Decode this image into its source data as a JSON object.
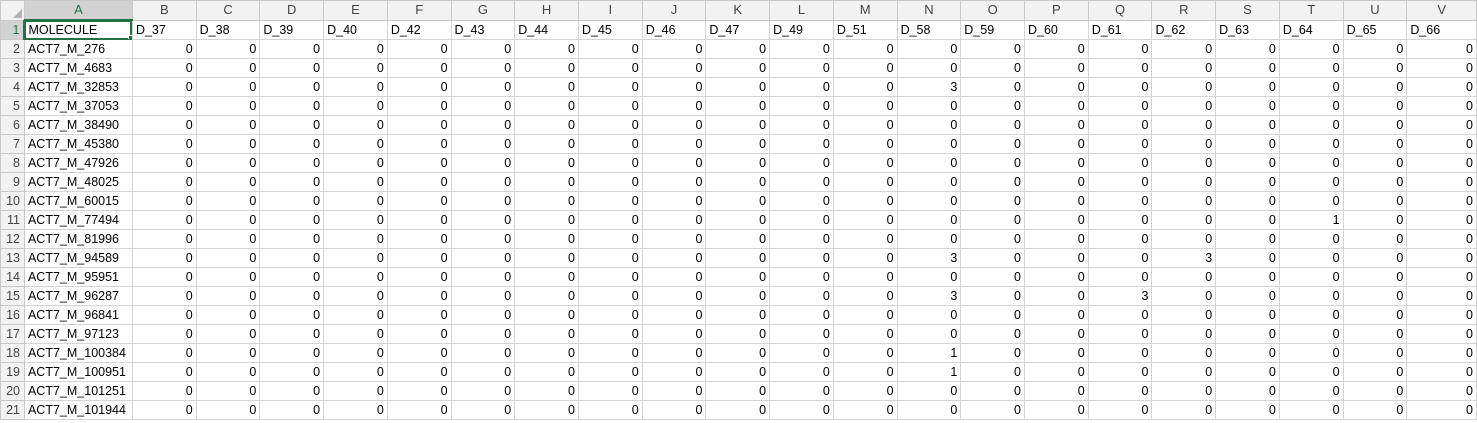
{
  "spreadsheet": {
    "column_letters": [
      "A",
      "B",
      "C",
      "D",
      "E",
      "F",
      "G",
      "H",
      "I",
      "J",
      "K",
      "L",
      "M",
      "N",
      "O",
      "P",
      "Q",
      "R",
      "S",
      "T",
      "U",
      "V"
    ],
    "row_numbers": [
      "1",
      "2",
      "3",
      "4",
      "5",
      "6",
      "7",
      "8",
      "9",
      "10",
      "11",
      "12",
      "13",
      "14",
      "15",
      "16",
      "17",
      "18",
      "19",
      "20",
      "21"
    ],
    "active_cell": "A1",
    "header_row": [
      "MOLECULE",
      "D_37",
      "D_38",
      "D_39",
      "D_40",
      "D_42",
      "D_43",
      "D_44",
      "D_45",
      "D_46",
      "D_47",
      "D_49",
      "D_51",
      "D_58",
      "D_59",
      "D_60",
      "D_61",
      "D_62",
      "D_63",
      "D_64",
      "D_65",
      "D_66"
    ],
    "data_rows": [
      [
        "ACT7_M_276",
        "0",
        "0",
        "0",
        "0",
        "0",
        "0",
        "0",
        "0",
        "0",
        "0",
        "0",
        "0",
        "0",
        "0",
        "0",
        "0",
        "0",
        "0",
        "0",
        "0",
        "0"
      ],
      [
        "ACT7_M_4683",
        "0",
        "0",
        "0",
        "0",
        "0",
        "0",
        "0",
        "0",
        "0",
        "0",
        "0",
        "0",
        "0",
        "0",
        "0",
        "0",
        "0",
        "0",
        "0",
        "0",
        "0"
      ],
      [
        "ACT7_M_32853",
        "0",
        "0",
        "0",
        "0",
        "0",
        "0",
        "0",
        "0",
        "0",
        "0",
        "0",
        "0",
        "3",
        "0",
        "0",
        "0",
        "0",
        "0",
        "0",
        "0",
        "0"
      ],
      [
        "ACT7_M_37053",
        "0",
        "0",
        "0",
        "0",
        "0",
        "0",
        "0",
        "0",
        "0",
        "0",
        "0",
        "0",
        "0",
        "0",
        "0",
        "0",
        "0",
        "0",
        "0",
        "0",
        "0"
      ],
      [
        "ACT7_M_38490",
        "0",
        "0",
        "0",
        "0",
        "0",
        "0",
        "0",
        "0",
        "0",
        "0",
        "0",
        "0",
        "0",
        "0",
        "0",
        "0",
        "0",
        "0",
        "0",
        "0",
        "0"
      ],
      [
        "ACT7_M_45380",
        "0",
        "0",
        "0",
        "0",
        "0",
        "0",
        "0",
        "0",
        "0",
        "0",
        "0",
        "0",
        "0",
        "0",
        "0",
        "0",
        "0",
        "0",
        "0",
        "0",
        "0"
      ],
      [
        "ACT7_M_47926",
        "0",
        "0",
        "0",
        "0",
        "0",
        "0",
        "0",
        "0",
        "0",
        "0",
        "0",
        "0",
        "0",
        "0",
        "0",
        "0",
        "0",
        "0",
        "0",
        "0",
        "0"
      ],
      [
        "ACT7_M_48025",
        "0",
        "0",
        "0",
        "0",
        "0",
        "0",
        "0",
        "0",
        "0",
        "0",
        "0",
        "0",
        "0",
        "0",
        "0",
        "0",
        "0",
        "0",
        "0",
        "0",
        "0"
      ],
      [
        "ACT7_M_60015",
        "0",
        "0",
        "0",
        "0",
        "0",
        "0",
        "0",
        "0",
        "0",
        "0",
        "0",
        "0",
        "0",
        "0",
        "0",
        "0",
        "0",
        "0",
        "0",
        "0",
        "0"
      ],
      [
        "ACT7_M_77494",
        "0",
        "0",
        "0",
        "0",
        "0",
        "0",
        "0",
        "0",
        "0",
        "0",
        "0",
        "0",
        "0",
        "0",
        "0",
        "0",
        "0",
        "0",
        "1",
        "0",
        "0"
      ],
      [
        "ACT7_M_81996",
        "0",
        "0",
        "0",
        "0",
        "0",
        "0",
        "0",
        "0",
        "0",
        "0",
        "0",
        "0",
        "0",
        "0",
        "0",
        "0",
        "0",
        "0",
        "0",
        "0",
        "0"
      ],
      [
        "ACT7_M_94589",
        "0",
        "0",
        "0",
        "0",
        "0",
        "0",
        "0",
        "0",
        "0",
        "0",
        "0",
        "0",
        "3",
        "0",
        "0",
        "0",
        "3",
        "0",
        "0",
        "0",
        "0"
      ],
      [
        "ACT7_M_95951",
        "0",
        "0",
        "0",
        "0",
        "0",
        "0",
        "0",
        "0",
        "0",
        "0",
        "0",
        "0",
        "0",
        "0",
        "0",
        "0",
        "0",
        "0",
        "0",
        "0",
        "0"
      ],
      [
        "ACT7_M_96287",
        "0",
        "0",
        "0",
        "0",
        "0",
        "0",
        "0",
        "0",
        "0",
        "0",
        "0",
        "0",
        "3",
        "0",
        "0",
        "3",
        "0",
        "0",
        "0",
        "0",
        "0"
      ],
      [
        "ACT7_M_96841",
        "0",
        "0",
        "0",
        "0",
        "0",
        "0",
        "0",
        "0",
        "0",
        "0",
        "0",
        "0",
        "0",
        "0",
        "0",
        "0",
        "0",
        "0",
        "0",
        "0",
        "0"
      ],
      [
        "ACT7_M_97123",
        "0",
        "0",
        "0",
        "0",
        "0",
        "0",
        "0",
        "0",
        "0",
        "0",
        "0",
        "0",
        "0",
        "0",
        "0",
        "0",
        "0",
        "0",
        "0",
        "0",
        "0"
      ],
      [
        "ACT7_M_100384",
        "0",
        "0",
        "0",
        "0",
        "0",
        "0",
        "0",
        "0",
        "0",
        "0",
        "0",
        "0",
        "1",
        "0",
        "0",
        "0",
        "0",
        "0",
        "0",
        "0",
        "0"
      ],
      [
        "ACT7_M_100951",
        "0",
        "0",
        "0",
        "0",
        "0",
        "0",
        "0",
        "0",
        "0",
        "0",
        "0",
        "0",
        "1",
        "0",
        "0",
        "0",
        "0",
        "0",
        "0",
        "0",
        "0"
      ],
      [
        "ACT7_M_101251",
        "0",
        "0",
        "0",
        "0",
        "0",
        "0",
        "0",
        "0",
        "0",
        "0",
        "0",
        "0",
        "0",
        "0",
        "0",
        "0",
        "0",
        "0",
        "0",
        "0",
        "0"
      ],
      [
        "ACT7_M_101944",
        "0",
        "0",
        "0",
        "0",
        "0",
        "0",
        "0",
        "0",
        "0",
        "0",
        "0",
        "0",
        "0",
        "0",
        "0",
        "0",
        "0",
        "0",
        "0",
        "0",
        "0"
      ]
    ]
  }
}
